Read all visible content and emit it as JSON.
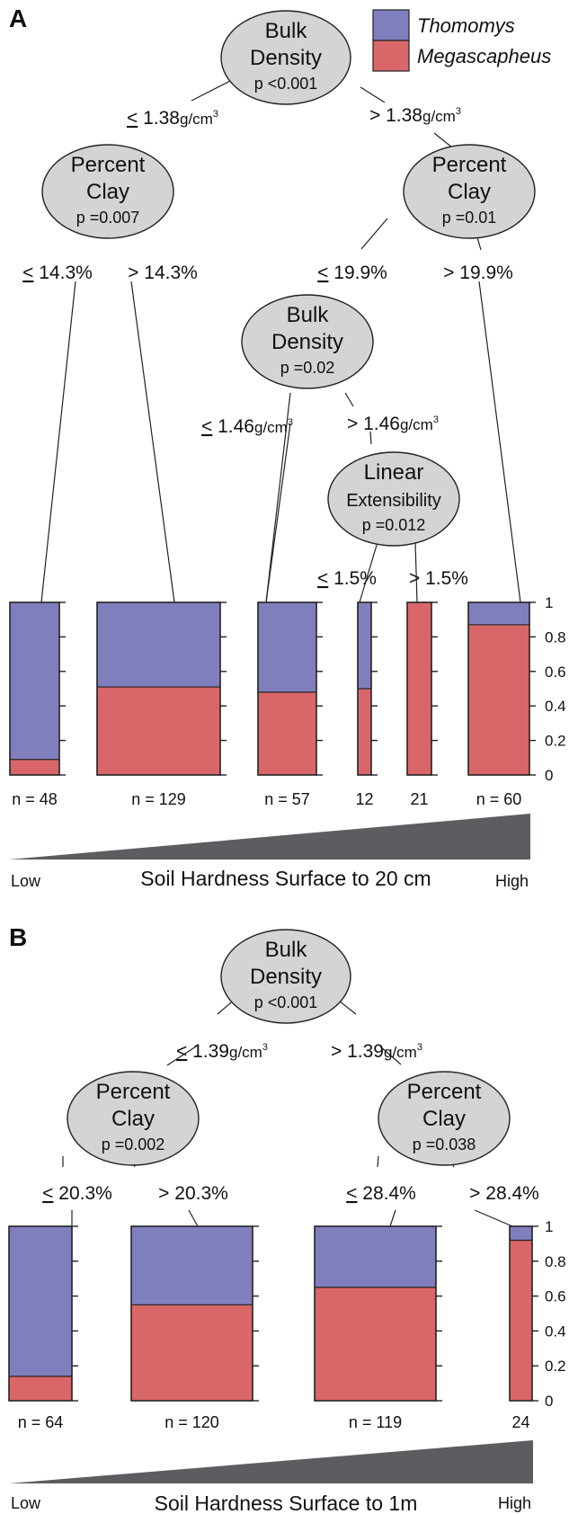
{
  "colors": {
    "thomomys": "#7f7fbe",
    "megascapheus": "#d96668",
    "node_fill": "#d3d4d6",
    "wedge": "#5c5d60"
  },
  "legend": {
    "items": [
      {
        "label": "Thomomys",
        "color": "#7f7fbe"
      },
      {
        "label": "Megascapheus",
        "color": "#d96668"
      }
    ]
  },
  "panels": [
    {
      "letter": "A",
      "nodes": [
        {
          "line1": "Bulk",
          "line2": "Density",
          "p": "p <0.001"
        },
        {
          "line1": "Percent",
          "line2": "Clay",
          "p": "p =0.007"
        },
        {
          "line1": "Percent",
          "line2": "Clay",
          "p": "p =0.01"
        },
        {
          "line1": "Bulk",
          "line2": "Density",
          "p": "p =0.02"
        },
        {
          "line1": "Linear",
          "line2": "Extensibility",
          "p": "p =0.012"
        }
      ],
      "splits": [
        {
          "leq": true,
          "value": "1.38",
          "unit": "g/cm",
          "sup": "3"
        },
        {
          "leq": false,
          "value": "1.38",
          "unit": "g/cm",
          "sup": "3"
        },
        {
          "leq": true,
          "value": "14.3%"
        },
        {
          "leq": false,
          "value": "14.3%"
        },
        {
          "leq": true,
          "value": "19.9%"
        },
        {
          "leq": false,
          "value": "19.9%"
        },
        {
          "leq": true,
          "value": "1.46",
          "unit": "g/cm",
          "sup": "3"
        },
        {
          "leq": false,
          "value": "1.46",
          "unit": "g/cm",
          "sup": "3"
        },
        {
          "leq": true,
          "value": "1.5%"
        },
        {
          "leq": false,
          "value": "1.5%"
        }
      ],
      "leaves": [
        {
          "n_label": "n = 48",
          "megascapheus_fraction": 0.09
        },
        {
          "n_label": "n = 129",
          "megascapheus_fraction": 0.51
        },
        {
          "n_label": "n = 57",
          "megascapheus_fraction": 0.48
        },
        {
          "n_label": "12",
          "megascapheus_fraction": 0.5
        },
        {
          "n_label": "21",
          "megascapheus_fraction": 1.0
        },
        {
          "n_label": "n = 60",
          "megascapheus_fraction": 0.87
        }
      ],
      "ticks": [
        "1",
        "0.8",
        "0.6",
        "0.4",
        "0.2",
        "0"
      ],
      "axis": {
        "title": "Soil Hardness Surface to 20 cm",
        "low": "Low",
        "high": "High"
      }
    },
    {
      "letter": "B",
      "nodes": [
        {
          "line1": "Bulk",
          "line2": "Density",
          "p": "p <0.001"
        },
        {
          "line1": "Percent",
          "line2": "Clay",
          "p": "p =0.002"
        },
        {
          "line1": "Percent",
          "line2": "Clay",
          "p": "p =0.038"
        }
      ],
      "splits": [
        {
          "leq": true,
          "value": "1.39",
          "unit": "g/cm",
          "sup": "3"
        },
        {
          "leq": false,
          "value": "1.39",
          "unit": "g/cm",
          "sup": "3"
        },
        {
          "leq": true,
          "value": "20.3%"
        },
        {
          "leq": false,
          "value": "20.3%"
        },
        {
          "leq": true,
          "value": "28.4%"
        },
        {
          "leq": false,
          "value": "28.4%"
        }
      ],
      "leaves": [
        {
          "n_label": "n = 64",
          "megascapheus_fraction": 0.14
        },
        {
          "n_label": "n = 120",
          "megascapheus_fraction": 0.55
        },
        {
          "n_label": "n = 119",
          "megascapheus_fraction": 0.65
        },
        {
          "n_label": "24",
          "megascapheus_fraction": 0.92
        }
      ],
      "ticks": [
        "1",
        "0.8",
        "0.6",
        "0.4",
        "0.2",
        "0"
      ],
      "axis": {
        "title": "Soil Hardness Surface to 1m",
        "low": "Low",
        "high": "High"
      }
    }
  ]
}
